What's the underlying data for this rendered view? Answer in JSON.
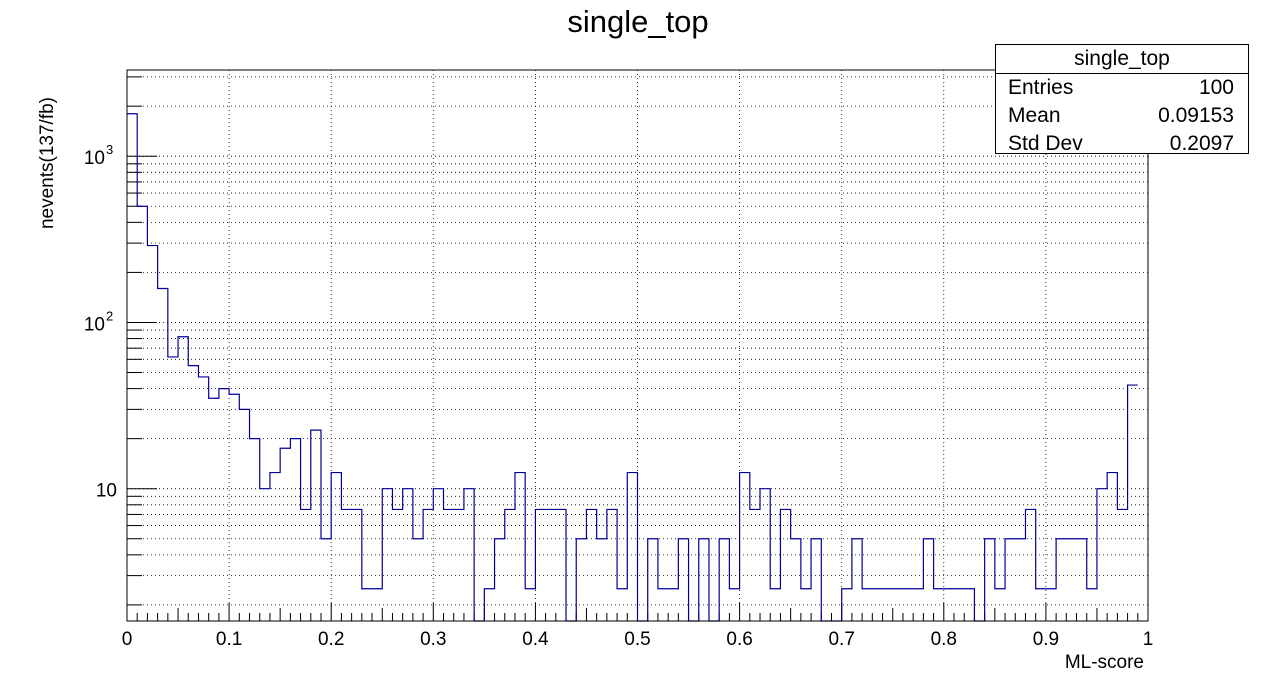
{
  "chart_data": {
    "type": "histogram",
    "title": "single_top",
    "xlabel": "ML-score",
    "ylabel": "nevents(137/fb)",
    "xlim": [
      0,
      1
    ],
    "ylim": [
      1.6,
      3300
    ],
    "y_scale": "log",
    "grid": true,
    "x_tick_labels": [
      "0",
      "0.1",
      "0.2",
      "0.3",
      "0.4",
      "0.5",
      "0.6",
      "0.7",
      "0.8",
      "0.9",
      "1"
    ],
    "y_tick_labels": [
      {
        "value": 10,
        "base": "10",
        "exp": ""
      },
      {
        "value": 100,
        "base": "10",
        "exp": "2"
      },
      {
        "value": 1000,
        "base": "10",
        "exp": "3"
      }
    ],
    "bin_width": 0.01,
    "values": [
      1800,
      500,
      290,
      160,
      62,
      82,
      55,
      47,
      35,
      40,
      37,
      30,
      20,
      10,
      12.5,
      17.5,
      20,
      7.5,
      22.5,
      5,
      12.5,
      7.5,
      7.5,
      2.5,
      2.5,
      10,
      7.5,
      10,
      5,
      7.5,
      10,
      7.5,
      7.5,
      10,
      0,
      2.5,
      5,
      7.5,
      12.5,
      2.5,
      7.5,
      7.5,
      7.5,
      0,
      5,
      7.5,
      5,
      7.5,
      2.5,
      12.5,
      0,
      5,
      2.5,
      2.5,
      5,
      0,
      5,
      0,
      5,
      2.5,
      12.5,
      7.5,
      10,
      2.5,
      7.5,
      5,
      2.5,
      5,
      0,
      0,
      2.5,
      5,
      2.5,
      2.5,
      2.5,
      2.5,
      2.5,
      2.5,
      5,
      2.5,
      2.5,
      2.5,
      2.5,
      0,
      5,
      2.5,
      5,
      5,
      7.5,
      2.5,
      2.5,
      5,
      5,
      5,
      2.5,
      10,
      12.5,
      7.5,
      42
    ],
    "line_color": "#000099",
    "stats": {
      "name": "single_top",
      "rows": [
        {
          "label": "Entries",
          "value": "100"
        },
        {
          "label": "Mean",
          "value": "0.09153"
        },
        {
          "label": "Std Dev",
          "value": "0.2097"
        }
      ]
    }
  }
}
